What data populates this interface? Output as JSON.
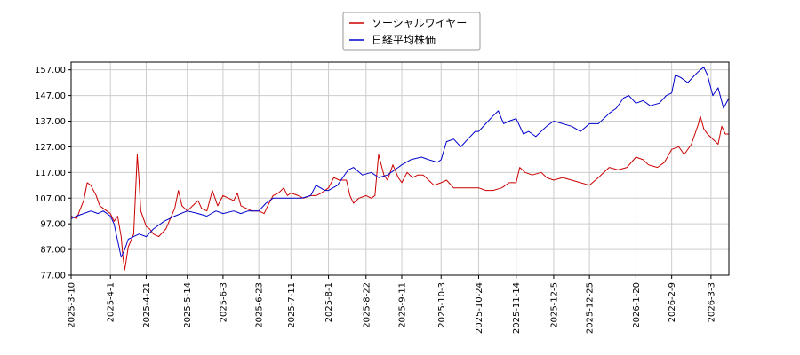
{
  "chart_data": {
    "type": "line",
    "title": "",
    "xlabel": "",
    "ylabel": "",
    "ylim": [
      77,
      160
    ],
    "y_ticks": [
      "77.00",
      "87.00",
      "97.00",
      "107.00",
      "117.00",
      "127.00",
      "137.00",
      "147.00",
      "157.00"
    ],
    "x_range": [
      "2025-03-10",
      "2026-03-13"
    ],
    "x_ticks": [
      "2025-3-10",
      "2025-4-1",
      "2025-4-21",
      "2025-5-14",
      "2025-6-3",
      "2025-6-23",
      "2025-7-11",
      "2025-8-1",
      "2025-8-22",
      "2025-9-11",
      "2025-10-3",
      "2025-10-24",
      "2025-11-14",
      "2025-12-5",
      "2025-12-25",
      "2026-1-20",
      "2026-2-9",
      "2026-3-3"
    ],
    "grid": true,
    "legend": "top-center",
    "series": [
      {
        "name": "ソーシャルワイヤー",
        "color": "#cc0000",
        "points": [
          [
            "2025-03-10",
            100
          ],
          [
            "2025-03-13",
            99
          ],
          [
            "2025-03-17",
            106
          ],
          [
            "2025-03-19",
            113
          ],
          [
            "2025-03-21",
            112
          ],
          [
            "2025-03-24",
            108
          ],
          [
            "2025-03-26",
            104
          ],
          [
            "2025-03-28",
            103
          ],
          [
            "2025-04-01",
            101
          ],
          [
            "2025-04-03",
            98
          ],
          [
            "2025-04-05",
            100
          ],
          [
            "2025-04-07",
            92
          ],
          [
            "2025-04-08",
            84
          ],
          [
            "2025-04-09",
            79
          ],
          [
            "2025-04-11",
            88
          ],
          [
            "2025-04-14",
            93
          ],
          [
            "2025-04-16",
            124
          ],
          [
            "2025-04-17",
            114
          ],
          [
            "2025-04-18",
            102
          ],
          [
            "2025-04-21",
            96
          ],
          [
            "2025-04-23",
            95
          ],
          [
            "2025-04-25",
            93
          ],
          [
            "2025-04-28",
            92
          ],
          [
            "2025-05-02",
            95
          ],
          [
            "2025-05-07",
            103
          ],
          [
            "2025-05-09",
            110
          ],
          [
            "2025-05-11",
            104
          ],
          [
            "2025-05-14",
            102
          ],
          [
            "2025-05-17",
            104
          ],
          [
            "2025-05-20",
            106
          ],
          [
            "2025-05-22",
            103
          ],
          [
            "2025-05-25",
            102
          ],
          [
            "2025-05-28",
            110
          ],
          [
            "2025-05-31",
            104
          ],
          [
            "2025-06-03",
            108
          ],
          [
            "2025-06-06",
            107
          ],
          [
            "2025-06-09",
            106
          ],
          [
            "2025-06-11",
            109
          ],
          [
            "2025-06-13",
            104
          ],
          [
            "2025-06-16",
            103
          ],
          [
            "2025-06-19",
            102
          ],
          [
            "2025-06-23",
            102
          ],
          [
            "2025-06-26",
            101
          ],
          [
            "2025-06-28",
            104
          ],
          [
            "2025-07-01",
            108
          ],
          [
            "2025-07-04",
            109
          ],
          [
            "2025-07-07",
            111
          ],
          [
            "2025-07-09",
            108
          ],
          [
            "2025-07-11",
            109
          ],
          [
            "2025-07-15",
            108
          ],
          [
            "2025-07-18",
            107
          ],
          [
            "2025-07-22",
            108
          ],
          [
            "2025-07-25",
            108
          ],
          [
            "2025-07-28",
            109
          ],
          [
            "2025-08-01",
            111
          ],
          [
            "2025-08-04",
            115
          ],
          [
            "2025-08-07",
            114
          ],
          [
            "2025-08-11",
            114
          ],
          [
            "2025-08-13",
            108
          ],
          [
            "2025-08-15",
            105
          ],
          [
            "2025-08-18",
            107
          ],
          [
            "2025-08-22",
            108
          ],
          [
            "2025-08-25",
            107
          ],
          [
            "2025-08-27",
            108
          ],
          [
            "2025-08-29",
            124
          ],
          [
            "2025-09-01",
            116
          ],
          [
            "2025-09-03",
            114
          ],
          [
            "2025-09-06",
            120
          ],
          [
            "2025-09-09",
            115
          ],
          [
            "2025-09-11",
            113
          ],
          [
            "2025-09-14",
            117
          ],
          [
            "2025-09-17",
            115
          ],
          [
            "2025-09-20",
            116
          ],
          [
            "2025-09-23",
            116
          ],
          [
            "2025-09-26",
            114
          ],
          [
            "2025-09-29",
            112
          ],
          [
            "2025-10-03",
            113
          ],
          [
            "2025-10-06",
            114
          ],
          [
            "2025-10-10",
            111
          ],
          [
            "2025-10-15",
            111
          ],
          [
            "2025-10-20",
            111
          ],
          [
            "2025-10-24",
            111
          ],
          [
            "2025-10-28",
            110
          ],
          [
            "2025-11-01",
            110
          ],
          [
            "2025-11-06",
            111
          ],
          [
            "2025-11-10",
            113
          ],
          [
            "2025-11-14",
            113
          ],
          [
            "2025-11-16",
            119
          ],
          [
            "2025-11-19",
            117
          ],
          [
            "2025-11-23",
            116
          ],
          [
            "2025-11-28",
            117
          ],
          [
            "2025-12-01",
            115
          ],
          [
            "2025-12-05",
            114
          ],
          [
            "2025-12-10",
            115
          ],
          [
            "2025-12-15",
            114
          ],
          [
            "2025-12-20",
            113
          ],
          [
            "2025-12-25",
            112
          ],
          [
            "2025-12-30",
            115
          ],
          [
            "2026-01-05",
            119
          ],
          [
            "2026-01-10",
            118
          ],
          [
            "2026-01-15",
            119
          ],
          [
            "2026-01-20",
            123
          ],
          [
            "2026-01-24",
            122
          ],
          [
            "2026-01-27",
            120
          ],
          [
            "2026-02-01",
            119
          ],
          [
            "2026-02-05",
            121
          ],
          [
            "2026-02-09",
            126
          ],
          [
            "2026-02-13",
            127
          ],
          [
            "2026-02-16",
            124
          ],
          [
            "2026-02-20",
            128
          ],
          [
            "2026-02-24",
            136
          ],
          [
            "2026-02-25",
            139
          ],
          [
            "2026-02-27",
            134
          ],
          [
            "2026-03-01",
            132
          ],
          [
            "2026-03-04",
            130
          ],
          [
            "2026-03-07",
            128
          ],
          [
            "2026-03-09",
            135
          ],
          [
            "2026-03-11",
            132
          ],
          [
            "2026-03-13",
            132
          ]
        ]
      },
      {
        "name": "日経平均株価",
        "color": "#0000cc",
        "points": [
          [
            "2025-03-10",
            99
          ],
          [
            "2025-03-13",
            100
          ],
          [
            "2025-03-17",
            101
          ],
          [
            "2025-03-21",
            102
          ],
          [
            "2025-03-25",
            101
          ],
          [
            "2025-03-28",
            102
          ],
          [
            "2025-04-01",
            100
          ],
          [
            "2025-04-03",
            97
          ],
          [
            "2025-04-07",
            84
          ],
          [
            "2025-04-09",
            87
          ],
          [
            "2025-04-11",
            91
          ],
          [
            "2025-04-14",
            92
          ],
          [
            "2025-04-17",
            93
          ],
          [
            "2025-04-21",
            92
          ],
          [
            "2025-04-25",
            95
          ],
          [
            "2025-05-01",
            98
          ],
          [
            "2025-05-07",
            100
          ],
          [
            "2025-05-14",
            102
          ],
          [
            "2025-05-20",
            101
          ],
          [
            "2025-05-25",
            100
          ],
          [
            "2025-05-30",
            102
          ],
          [
            "2025-06-03",
            101
          ],
          [
            "2025-06-09",
            102
          ],
          [
            "2025-06-13",
            101
          ],
          [
            "2025-06-17",
            102
          ],
          [
            "2025-06-23",
            102
          ],
          [
            "2025-06-27",
            105
          ],
          [
            "2025-07-01",
            107
          ],
          [
            "2025-07-07",
            107
          ],
          [
            "2025-07-11",
            107
          ],
          [
            "2025-07-17",
            107
          ],
          [
            "2025-07-22",
            108
          ],
          [
            "2025-07-25",
            112
          ],
          [
            "2025-07-30",
            110
          ],
          [
            "2025-08-01",
            110
          ],
          [
            "2025-08-06",
            112
          ],
          [
            "2025-08-12",
            118
          ],
          [
            "2025-08-15",
            119
          ],
          [
            "2025-08-20",
            116
          ],
          [
            "2025-08-25",
            117
          ],
          [
            "2025-08-29",
            115
          ],
          [
            "2025-09-03",
            116
          ],
          [
            "2025-09-09",
            119
          ],
          [
            "2025-09-11",
            120
          ],
          [
            "2025-09-16",
            122
          ],
          [
            "2025-09-22",
            123
          ],
          [
            "2025-09-26",
            122
          ],
          [
            "2025-10-01",
            121
          ],
          [
            "2025-10-03",
            122
          ],
          [
            "2025-10-06",
            129
          ],
          [
            "2025-10-10",
            130
          ],
          [
            "2025-10-14",
            127
          ],
          [
            "2025-10-18",
            130
          ],
          [
            "2025-10-22",
            133
          ],
          [
            "2025-10-24",
            133
          ],
          [
            "2025-10-28",
            136
          ],
          [
            "2025-11-01",
            139
          ],
          [
            "2025-11-04",
            141
          ],
          [
            "2025-11-07",
            136
          ],
          [
            "2025-11-10",
            137
          ],
          [
            "2025-11-14",
            138
          ],
          [
            "2025-11-18",
            132
          ],
          [
            "2025-11-21",
            133
          ],
          [
            "2025-11-25",
            131
          ],
          [
            "2025-12-01",
            135
          ],
          [
            "2025-12-05",
            137
          ],
          [
            "2025-12-10",
            136
          ],
          [
            "2025-12-15",
            135
          ],
          [
            "2025-12-20",
            133
          ],
          [
            "2025-12-25",
            136
          ],
          [
            "2025-12-30",
            136
          ],
          [
            "2026-01-05",
            140
          ],
          [
            "2026-01-09",
            142
          ],
          [
            "2026-01-13",
            146
          ],
          [
            "2026-01-16",
            147
          ],
          [
            "2026-01-20",
            144
          ],
          [
            "2026-01-24",
            145
          ],
          [
            "2026-01-28",
            143
          ],
          [
            "2026-02-02",
            144
          ],
          [
            "2026-02-06",
            147
          ],
          [
            "2026-02-09",
            148
          ],
          [
            "2026-02-11",
            155
          ],
          [
            "2026-02-14",
            154
          ],
          [
            "2026-02-18",
            152
          ],
          [
            "2026-02-22",
            155
          ],
          [
            "2026-02-25",
            157
          ],
          [
            "2026-02-27",
            158
          ],
          [
            "2026-03-01",
            155
          ],
          [
            "2026-03-04",
            147
          ],
          [
            "2026-03-07",
            150
          ],
          [
            "2026-03-10",
            142
          ],
          [
            "2026-03-13",
            146
          ]
        ]
      }
    ]
  }
}
